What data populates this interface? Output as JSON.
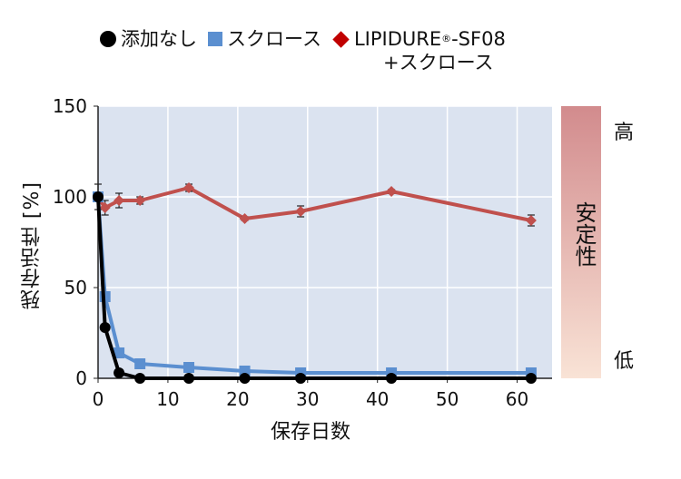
{
  "legend": {
    "none": "添加なし",
    "sucrose": "スクロース",
    "lipidure_main": "LIPIDURE",
    "lipidure_reg": "®",
    "lipidure_rest": "-SF08",
    "lipidure_line2": "+スクロース"
  },
  "stability": {
    "label": "安定性",
    "high": "高",
    "low": "低"
  },
  "colors": {
    "none": "#000000",
    "sucrose": "#5b8fd0",
    "lipidure": "#c0504d",
    "plot_bg": "#dbe3f0",
    "grid": "#ffffff"
  },
  "chart_data": {
    "type": "line",
    "xlabel": "保存日数",
    "ylabel": "残存活性 [%]",
    "xlim": [
      0,
      65
    ],
    "ylim": [
      0,
      150
    ],
    "xticks": [
      0,
      10,
      20,
      30,
      40,
      50,
      60
    ],
    "yticks": [
      0,
      50,
      100,
      150
    ],
    "grid": true,
    "legend_position": "top",
    "series": [
      {
        "name": "添加なし",
        "marker": "circle",
        "x": [
          0,
          1,
          3,
          6,
          13,
          21,
          29,
          42,
          62
        ],
        "y": [
          100,
          28,
          3,
          0,
          0,
          0,
          0,
          0,
          0
        ]
      },
      {
        "name": "スクロース",
        "marker": "square",
        "x": [
          0,
          1,
          3,
          6,
          13,
          21,
          29,
          42,
          62
        ],
        "y": [
          100,
          45,
          14,
          8,
          6,
          4,
          3,
          3,
          3
        ]
      },
      {
        "name": "LIPIDURE®-SF08 +スクロース",
        "marker": "diamond",
        "x": [
          0,
          1,
          3,
          6,
          13,
          21,
          29,
          42,
          62
        ],
        "y": [
          100,
          94,
          98,
          98,
          105,
          88,
          92,
          103,
          87
        ],
        "err": [
          7,
          4,
          4,
          2,
          2,
          1,
          3,
          1,
          3
        ]
      }
    ]
  }
}
